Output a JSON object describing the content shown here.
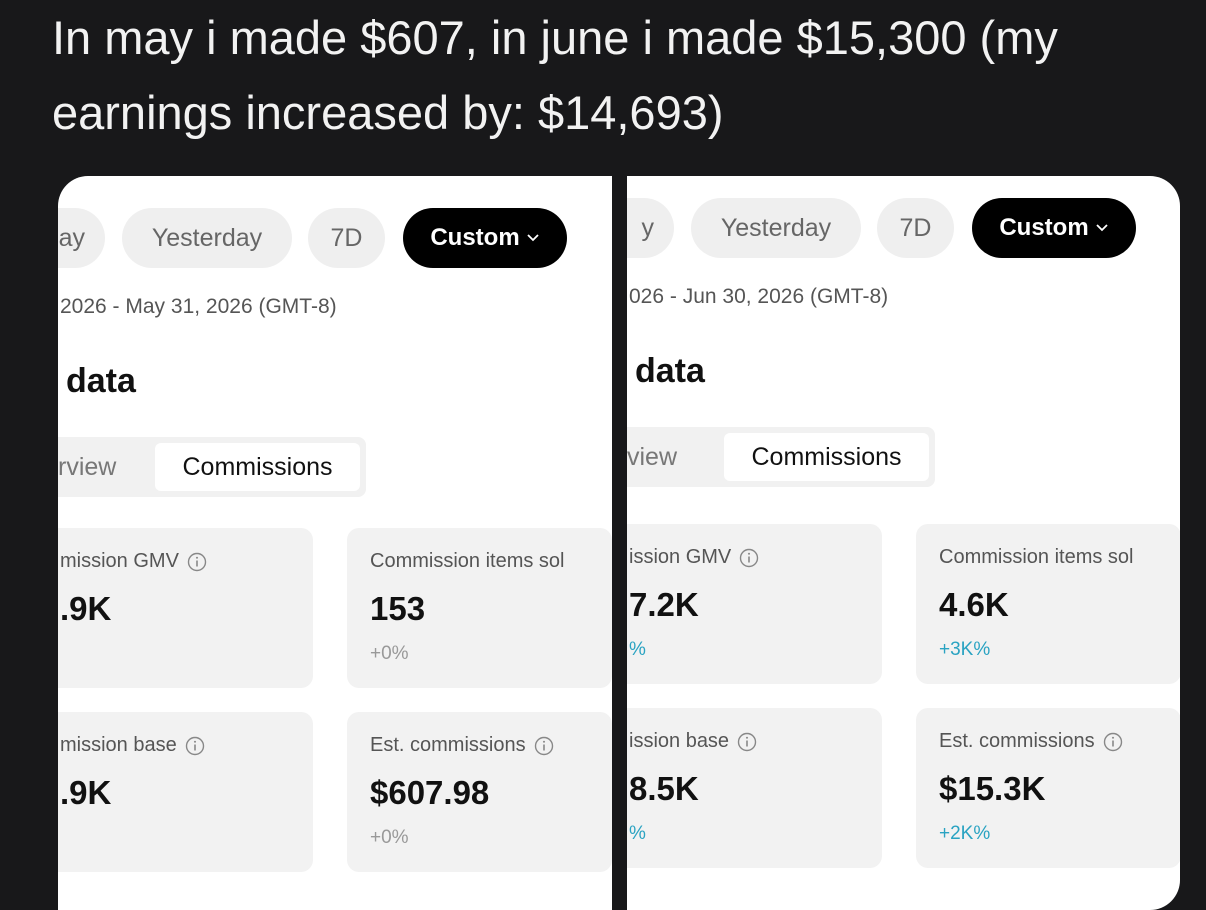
{
  "post": {
    "lines": [
      "In may i made $607, in june i made $15,300 (my",
      "earnings increased by: $14,693)"
    ]
  },
  "panels": [
    {
      "filters": [
        "ay",
        "Yesterday",
        "7D",
        "Custom"
      ],
      "date_range": "2026 - May 31, 2026 (GMT-8)",
      "heading": "data",
      "tabs": [
        "rview",
        "Commissions"
      ],
      "metrics": [
        {
          "label": "mission GMV",
          "value": ".9K"
        },
        {
          "label": "Commission items sol",
          "value": "153",
          "change": "+0%"
        },
        {
          "label": "mission base",
          "value": ".9K"
        },
        {
          "label": "Est. commissions",
          "value": "$607.98",
          "change": "+0%"
        }
      ]
    },
    {
      "filters": [
        "y",
        "Yesterday",
        "7D",
        "Custom"
      ],
      "date_range": "026 - Jun 30, 2026 (GMT-8)",
      "heading": "data",
      "tabs": [
        "view",
        "Commissions"
      ],
      "metrics": [
        {
          "label": "ission GMV",
          "value": "7.2K",
          "change": "%"
        },
        {
          "label": "Commission items sol",
          "value": "4.6K",
          "change": "+3K%"
        },
        {
          "label": "ission base",
          "value": "8.5K",
          "change": "%"
        },
        {
          "label": "Est. commissions",
          "value": "$15.3K",
          "change": "+2K%"
        }
      ]
    }
  ]
}
